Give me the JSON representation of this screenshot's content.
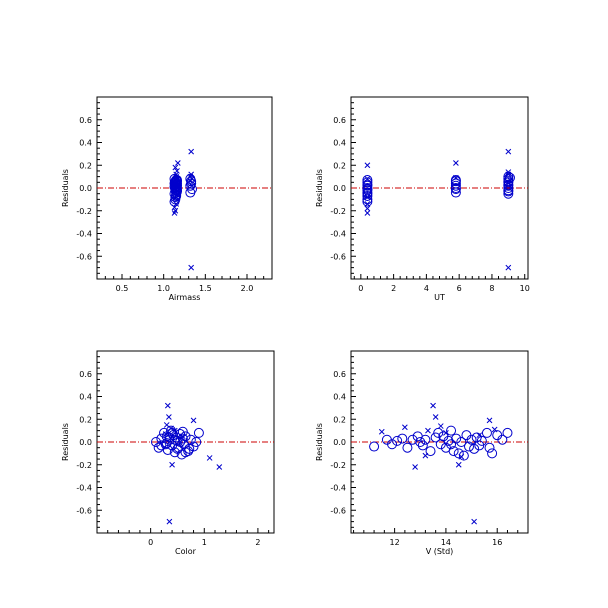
{
  "figure": {
    "colors": {
      "marker": "#0000cc",
      "zero_line": "#cc0000",
      "axis": "#000000"
    }
  },
  "chart_data": [
    {
      "type": "scatter",
      "xlabel": "Airmass",
      "ylabel": "Residuals",
      "xlim": [
        0.2,
        2.3
      ],
      "ylim": [
        -0.8,
        0.8
      ],
      "x_ticks": [
        0.5,
        1.0,
        1.5,
        2.0
      ],
      "y_ticks": [
        0.6,
        0.4,
        0.2,
        0.0,
        -0.2,
        -0.4,
        -0.6
      ],
      "grid": false,
      "zero_line": 0,
      "series": [
        {
          "marker": "circle",
          "points": [
            [
              1.14,
              0.05
            ],
            [
              1.15,
              0.03
            ],
            [
              1.13,
              0.01
            ],
            [
              1.16,
              0.07
            ],
            [
              1.14,
              -0.02
            ],
            [
              1.15,
              -0.04
            ],
            [
              1.16,
              0.06
            ],
            [
              1.13,
              0.04
            ],
            [
              1.14,
              0.0
            ],
            [
              1.15,
              -0.06
            ],
            [
              1.16,
              0.02
            ],
            [
              1.14,
              -0.08
            ],
            [
              1.13,
              0.08
            ],
            [
              1.15,
              0.01
            ],
            [
              1.16,
              -0.03
            ],
            [
              1.14,
              0.06
            ],
            [
              1.15,
              -0.01
            ],
            [
              1.16,
              0.04
            ],
            [
              1.13,
              -0.05
            ],
            [
              1.14,
              0.03
            ],
            [
              1.15,
              0.07
            ],
            [
              1.16,
              -0.02
            ],
            [
              1.14,
              -0.1
            ],
            [
              1.15,
              0.02
            ],
            [
              1.13,
              -0.12
            ],
            [
              1.14,
              0.05
            ],
            [
              1.16,
              0.0
            ],
            [
              1.15,
              -0.07
            ],
            [
              1.32,
              0.08
            ],
            [
              1.33,
              0.04
            ],
            [
              1.32,
              0.02
            ],
            [
              1.34,
              -0.01
            ],
            [
              1.33,
              0.06
            ],
            [
              1.32,
              -0.04
            ]
          ]
        },
        {
          "marker": "x",
          "points": [
            [
              1.14,
              0.07
            ],
            [
              1.15,
              0.1
            ],
            [
              1.16,
              0.15
            ],
            [
              1.17,
              0.22
            ],
            [
              1.13,
              -0.03
            ],
            [
              1.14,
              -0.09
            ],
            [
              1.15,
              -0.14
            ],
            [
              1.13,
              -0.17
            ],
            [
              1.14,
              -0.2
            ],
            [
              1.13,
              -0.22
            ],
            [
              1.16,
              0.05
            ],
            [
              1.15,
              0.12
            ],
            [
              1.14,
              0.18
            ],
            [
              1.16,
              -0.06
            ],
            [
              1.15,
              0.09
            ],
            [
              1.33,
              0.32
            ],
            [
              1.33,
              0.12
            ],
            [
              1.34,
              0.08
            ],
            [
              1.32,
              0.1
            ],
            [
              1.33,
              -0.7
            ],
            [
              1.32,
              0.06
            ],
            [
              1.34,
              0.02
            ]
          ]
        }
      ]
    },
    {
      "type": "scatter",
      "xlabel": "UT",
      "ylabel": "Residuals",
      "xlim": [
        -0.6,
        10.2
      ],
      "ylim": [
        -0.8,
        0.8
      ],
      "x_ticks": [
        0,
        2,
        4,
        6,
        8,
        10
      ],
      "y_ticks": [
        0.6,
        0.4,
        0.2,
        0.0,
        -0.2,
        -0.4,
        -0.6
      ],
      "grid": false,
      "zero_line": 0,
      "series": [
        {
          "marker": "circle",
          "points": [
            [
              0.4,
              0.05
            ],
            [
              0.4,
              0.02
            ],
            [
              0.4,
              -0.01
            ],
            [
              0.4,
              -0.04
            ],
            [
              0.4,
              0.07
            ],
            [
              0.4,
              -0.07
            ],
            [
              0.4,
              -0.1
            ],
            [
              0.4,
              0.0
            ],
            [
              0.4,
              -0.12
            ],
            [
              0.4,
              0.03
            ],
            [
              0.4,
              -0.05
            ],
            [
              0.4,
              -0.02
            ],
            [
              5.8,
              0.07
            ],
            [
              5.8,
              0.04
            ],
            [
              5.8,
              0.02
            ],
            [
              5.8,
              -0.01
            ],
            [
              5.8,
              -0.04
            ],
            [
              5.8,
              0.06
            ],
            [
              5.8,
              0.0
            ],
            [
              9.0,
              0.1
            ],
            [
              9.0,
              0.06
            ],
            [
              9.0,
              0.03
            ],
            [
              9.0,
              0.0
            ],
            [
              9.0,
              -0.03
            ],
            [
              9.0,
              0.08
            ],
            [
              9.0,
              -0.05
            ],
            [
              9.0,
              0.05
            ],
            [
              9.0,
              0.02
            ],
            [
              9.0,
              -0.02
            ],
            [
              9.1,
              0.09
            ]
          ]
        },
        {
          "marker": "x",
          "points": [
            [
              0.4,
              0.2
            ],
            [
              0.4,
              0.08
            ],
            [
              0.4,
              -0.14
            ],
            [
              0.4,
              -0.18
            ],
            [
              0.4,
              -0.22
            ],
            [
              0.4,
              -0.08
            ],
            [
              5.8,
              0.22
            ],
            [
              5.8,
              0.09
            ],
            [
              9.0,
              0.32
            ],
            [
              9.0,
              0.14
            ],
            [
              9.0,
              0.12
            ],
            [
              9.0,
              -0.7
            ],
            [
              9.0,
              0.04
            ],
            [
              9.1,
              0.07
            ]
          ]
        }
      ]
    },
    {
      "type": "scatter",
      "xlabel": "Color",
      "ylabel": "Residuals",
      "xlim": [
        -1.0,
        2.3
      ],
      "ylim": [
        -0.8,
        0.8
      ],
      "x_ticks": [
        0,
        1,
        2
      ],
      "y_ticks": [
        0.6,
        0.4,
        0.2,
        0.0,
        -0.2,
        -0.4,
        -0.6
      ],
      "grid": false,
      "zero_line": 0,
      "series": [
        {
          "marker": "circle",
          "points": [
            [
              0.1,
              0.0
            ],
            [
              0.15,
              -0.05
            ],
            [
              0.2,
              0.03
            ],
            [
              0.25,
              0.08
            ],
            [
              0.28,
              -0.02
            ],
            [
              0.3,
              0.05
            ],
            [
              0.32,
              -0.07
            ],
            [
              0.35,
              0.02
            ],
            [
              0.38,
              0.1
            ],
            [
              0.4,
              -0.03
            ],
            [
              0.42,
              0.06
            ],
            [
              0.45,
              -0.09
            ],
            [
              0.48,
              0.04
            ],
            [
              0.5,
              0.01
            ],
            [
              0.52,
              -0.05
            ],
            [
              0.55,
              0.07
            ],
            [
              0.58,
              -0.11
            ],
            [
              0.6,
              0.03
            ],
            [
              0.62,
              -0.02
            ],
            [
              0.65,
              0.05
            ],
            [
              0.7,
              -0.08
            ],
            [
              0.75,
              0.02
            ],
            [
              0.8,
              -0.04
            ],
            [
              0.85,
              0.0
            ],
            [
              0.3,
              -0.01
            ],
            [
              0.35,
              0.04
            ],
            [
              0.4,
              0.08
            ],
            [
              0.45,
              0.02
            ],
            [
              0.5,
              -0.06
            ],
            [
              0.55,
              0.0
            ],
            [
              0.6,
              0.09
            ],
            [
              0.2,
              -0.03
            ],
            [
              0.65,
              -0.09
            ],
            [
              0.72,
              -0.06
            ],
            [
              0.9,
              0.08
            ]
          ]
        },
        {
          "marker": "x",
          "points": [
            [
              0.32,
              0.32
            ],
            [
              0.34,
              0.22
            ],
            [
              0.3,
              0.15
            ],
            [
              0.38,
              0.12
            ],
            [
              0.4,
              -0.2
            ],
            [
              0.35,
              -0.7
            ],
            [
              0.8,
              0.19
            ],
            [
              1.1,
              -0.14
            ],
            [
              1.28,
              -0.22
            ],
            [
              0.28,
              0.07
            ],
            [
              0.45,
              0.1
            ],
            [
              0.6,
              0.05
            ]
          ]
        }
      ]
    },
    {
      "type": "scatter",
      "xlabel": "V (Std)",
      "ylabel": "Residuals",
      "xlim": [
        10.3,
        17.2
      ],
      "ylim": [
        -0.8,
        0.8
      ],
      "x_ticks": [
        12,
        14,
        16
      ],
      "y_ticks": [
        0.6,
        0.4,
        0.2,
        0.0,
        -0.2,
        -0.4,
        -0.6
      ],
      "grid": false,
      "zero_line": 0,
      "series": [
        {
          "marker": "circle",
          "points": [
            [
              11.2,
              -0.04
            ],
            [
              11.7,
              0.02
            ],
            [
              11.9,
              -0.02
            ],
            [
              12.1,
              0.01
            ],
            [
              12.3,
              0.03
            ],
            [
              12.5,
              -0.05
            ],
            [
              12.7,
              0.02
            ],
            [
              12.9,
              0.05
            ],
            [
              13.1,
              -0.03
            ],
            [
              13.2,
              0.02
            ],
            [
              13.4,
              -0.08
            ],
            [
              13.6,
              0.04
            ],
            [
              13.7,
              0.08
            ],
            [
              13.8,
              -0.02
            ],
            [
              13.9,
              0.05
            ],
            [
              14.0,
              -0.05
            ],
            [
              14.1,
              0.01
            ],
            [
              14.2,
              0.1
            ],
            [
              14.3,
              -0.08
            ],
            [
              14.4,
              0.03
            ],
            [
              14.5,
              -0.1
            ],
            [
              14.6,
              0.0
            ],
            [
              14.7,
              -0.12
            ],
            [
              14.8,
              0.06
            ],
            [
              14.9,
              -0.04
            ],
            [
              15.0,
              0.02
            ],
            [
              15.1,
              -0.06
            ],
            [
              15.2,
              0.04
            ],
            [
              15.3,
              -0.03
            ],
            [
              15.4,
              0.01
            ],
            [
              15.6,
              0.08
            ],
            [
              15.7,
              -0.05
            ],
            [
              15.8,
              -0.1
            ],
            [
              16.0,
              0.06
            ],
            [
              16.2,
              0.02
            ],
            [
              16.4,
              0.08
            ],
            [
              13.0,
              0.0
            ],
            [
              14.2,
              -0.02
            ]
          ]
        },
        {
          "marker": "x",
          "points": [
            [
              11.5,
              0.09
            ],
            [
              12.4,
              0.13
            ],
            [
              12.8,
              -0.22
            ],
            [
              13.5,
              0.32
            ],
            [
              13.6,
              0.22
            ],
            [
              13.3,
              0.1
            ],
            [
              13.8,
              0.14
            ],
            [
              14.5,
              -0.2
            ],
            [
              14.6,
              -0.13
            ],
            [
              15.1,
              -0.7
            ],
            [
              15.7,
              0.19
            ],
            [
              15.9,
              0.11
            ],
            [
              13.2,
              -0.12
            ],
            [
              14.0,
              0.08
            ],
            [
              15.3,
              0.06
            ]
          ]
        }
      ]
    }
  ]
}
